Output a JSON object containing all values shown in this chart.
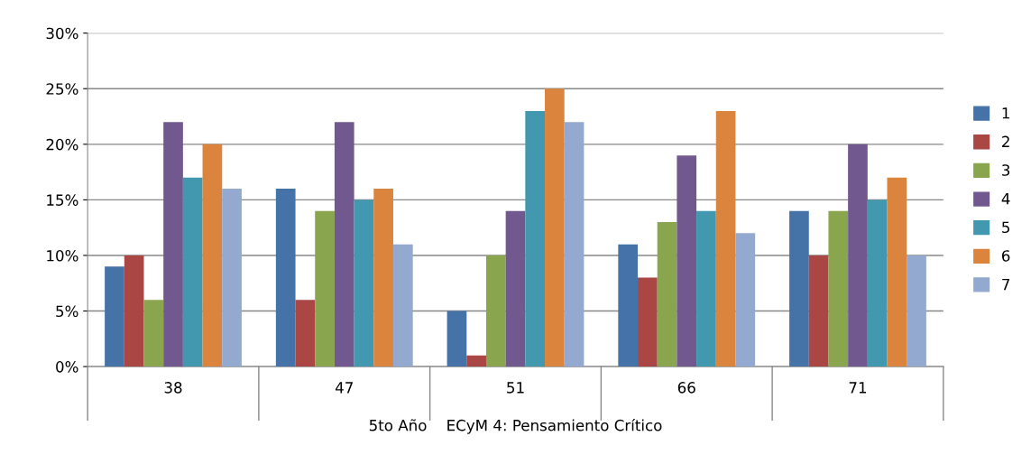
{
  "chart_data": {
    "type": "bar",
    "xlabel": "5to Año    ECyM 4: Pensamiento Crítico",
    "categories": [
      "38",
      "47",
      "51",
      "66",
      "71"
    ],
    "series": [
      {
        "name": "1",
        "color": "#4572a7",
        "values": [
          9,
          16,
          5,
          11,
          14
        ]
      },
      {
        "name": "2",
        "color": "#aa4643",
        "values": [
          10,
          6,
          1,
          8,
          10
        ]
      },
      {
        "name": "3",
        "color": "#89a54e",
        "values": [
          6,
          14,
          10,
          13,
          14
        ]
      },
      {
        "name": "4",
        "color": "#71588f",
        "values": [
          22,
          22,
          14,
          19,
          20
        ]
      },
      {
        "name": "5",
        "color": "#4198af",
        "values": [
          17,
          15,
          23,
          14,
          15
        ]
      },
      {
        "name": "6",
        "color": "#db843d",
        "values": [
          20,
          16,
          25,
          23,
          17
        ]
      },
      {
        "name": "7",
        "color": "#93a9cf",
        "values": [
          16,
          11,
          22,
          12,
          10
        ]
      }
    ],
    "ylim": [
      0,
      30
    ],
    "yticks": [
      {
        "value": 0,
        "label": "0%"
      },
      {
        "value": 5,
        "label": "5%"
      },
      {
        "value": 10,
        "label": "10%"
      },
      {
        "value": 15,
        "label": "15%"
      },
      {
        "value": 20,
        "label": "20%"
      },
      {
        "value": 25,
        "label": "25%"
      },
      {
        "value": 30,
        "label": "30%"
      }
    ],
    "grid": "y",
    "legend": "right"
  }
}
